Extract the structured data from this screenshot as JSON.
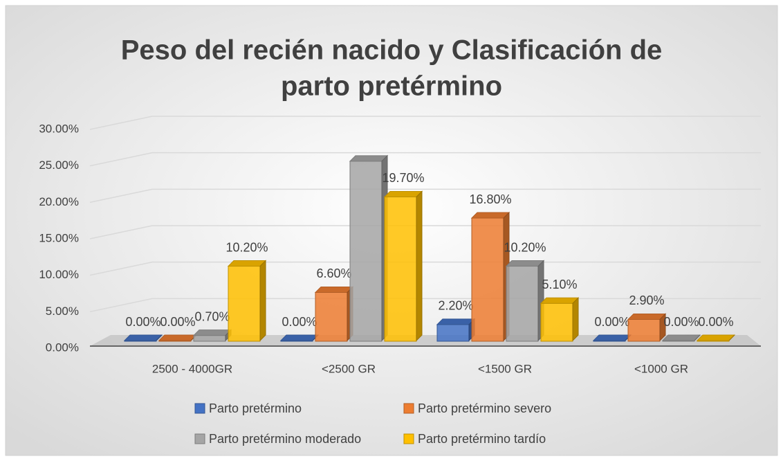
{
  "chart_data": {
    "type": "bar3d",
    "title": "Peso del recién nacido y Clasificación de parto pretérmino",
    "title_lines": [
      "Peso del recién nacido y Clasificación de",
      "parto pretérmino"
    ],
    "categories": [
      "2500 - 4000GR",
      "<2500 GR",
      "<1500 GR",
      "<1000 GR"
    ],
    "series": [
      {
        "name": "Parto pretérmino",
        "color": "#4472c4",
        "values": [
          0,
          0,
          2.2,
          0
        ],
        "value_labels": [
          "0.00%",
          "0.00%",
          "2.20%",
          "0.00%"
        ]
      },
      {
        "name": "Parto pretérmino severo",
        "color": "#ed7d31",
        "values": [
          0,
          6.6,
          16.8,
          2.9
        ],
        "value_labels": [
          "0.00%",
          "6.60%",
          "16.80%",
          "2.90%"
        ]
      },
      {
        "name": "Parto pretérmino moderado",
        "color": "#a5a5a5",
        "values": [
          0.7,
          24.6,
          10.2,
          0
        ],
        "value_labels": [
          "0.70%",
          null,
          "10.20%",
          "0.00%"
        ]
      },
      {
        "name": "Parto pretérmino tardío",
        "color": "#ffc000",
        "values": [
          10.2,
          19.7,
          5.1,
          0
        ],
        "value_labels": [
          "10.20%",
          "19.70%",
          "5.10%",
          "0.00%"
        ]
      }
    ],
    "ylim": [
      0,
      30
    ],
    "yticks": [
      {
        "value": 0,
        "label": "0.00%"
      },
      {
        "value": 5,
        "label": "5.00%"
      },
      {
        "value": 10,
        "label": "10.00%"
      },
      {
        "value": 15,
        "label": "15.00%"
      },
      {
        "value": 20,
        "label": "20.00%"
      },
      {
        "value": 25,
        "label": "25.00%"
      },
      {
        "value": 30,
        "label": "30.00%"
      }
    ],
    "grid": true,
    "legend": "bottom"
  }
}
